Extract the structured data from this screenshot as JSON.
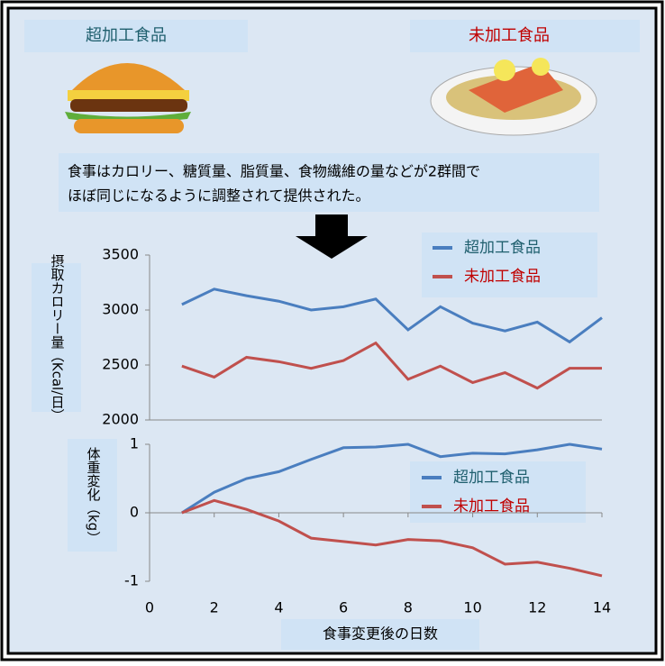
{
  "labels": {
    "left": "超加工食品",
    "right": "未加工食品",
    "note_line1": "食事はカロリー、糖質量、脂質量、食物繊維の量などが2群間で",
    "note_line2": "ほぼ同じになるように調整されて提供された。"
  },
  "chart_data": [
    {
      "type": "line",
      "y_label": "摂取カロリー量（Kcal/日）",
      "x": [
        1,
        2,
        3,
        4,
        5,
        6,
        7,
        8,
        9,
        10,
        11,
        12,
        13,
        14
      ],
      "xlim": [
        0,
        14
      ],
      "ylim": [
        2000,
        3500
      ],
      "yticks": [
        2000,
        2500,
        3000,
        3500
      ],
      "series": [
        {
          "name": "超加工食品",
          "color": "#4a7ebf",
          "values": [
            3050,
            3190,
            3130,
            3080,
            3000,
            3030,
            3100,
            2820,
            3030,
            2880,
            2810,
            2890,
            2710,
            2930
          ]
        },
        {
          "name": "未加工食品",
          "color": "#c0504d",
          "values": [
            2490,
            2390,
            2570,
            2530,
            2470,
            2540,
            2700,
            2370,
            2490,
            2340,
            2430,
            2290,
            2470,
            2470
          ]
        }
      ]
    },
    {
      "type": "line",
      "y_label": "体重変化（kg）",
      "x_label": "食事変更後の日数",
      "x": [
        1,
        2,
        3,
        4,
        5,
        6,
        7,
        8,
        9,
        10,
        11,
        12,
        13,
        14
      ],
      "xlim": [
        0,
        14
      ],
      "xticks": [
        0,
        2,
        4,
        6,
        8,
        10,
        12,
        14
      ],
      "ylim": [
        -1,
        1
      ],
      "yticks": [
        -1,
        0,
        1
      ],
      "series": [
        {
          "name": "超加工食品",
          "color": "#4a7ebf",
          "values": [
            0,
            0.3,
            0.5,
            0.6,
            0.78,
            0.95,
            0.96,
            1.0,
            0.82,
            0.87,
            0.86,
            0.92,
            1.0,
            0.93
          ]
        },
        {
          "name": "未加工食品",
          "color": "#c0504d",
          "values": [
            0,
            0.18,
            0.05,
            -0.12,
            -0.37,
            -0.42,
            -0.47,
            -0.39,
            -0.41,
            -0.51,
            -0.75,
            -0.72,
            -0.81,
            -0.92
          ]
        }
      ]
    }
  ]
}
